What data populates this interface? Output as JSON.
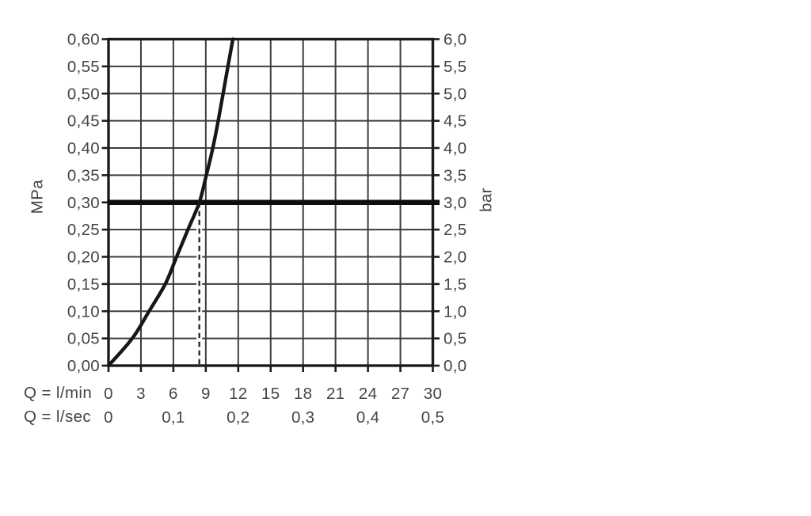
{
  "page": {
    "background_color": "#ffffff"
  },
  "chart_data": {
    "type": "line",
    "y_axis_left": {
      "unit": "MPa",
      "range": [
        0,
        0.6
      ],
      "tick_step": 0.05,
      "tick_labels": [
        "0,60",
        "0,55",
        "0,50",
        "0,45",
        "0,40",
        "0,35",
        "0,30",
        "0,25",
        "0,20",
        "0,15",
        "0,10",
        "0,05",
        "0,00"
      ]
    },
    "y_axis_right": {
      "unit": "bar",
      "range": [
        0,
        6.0
      ],
      "tick_step": 0.5,
      "tick_labels": [
        "6,0",
        "5,5",
        "5,0",
        "4,5",
        "4,0",
        "3,5",
        "3,0",
        "2,5",
        "2,0",
        "1,5",
        "1,0",
        "0,5",
        "0,0"
      ]
    },
    "x_axis_primary": {
      "label": "Q = l/min",
      "range": [
        0,
        30
      ],
      "tick_step": 3,
      "tick_labels": [
        "0",
        "3",
        "6",
        "9",
        "12",
        "15",
        "18",
        "21",
        "24",
        "27",
        "30"
      ]
    },
    "x_axis_secondary": {
      "label": "Q = l/sec",
      "tick_labels": [
        "0",
        "0,1",
        "0,2",
        "0,3",
        "0,4",
        "0,5"
      ],
      "tick_positions_lmin": [
        0,
        6,
        12,
        18,
        24,
        30
      ]
    },
    "grid": {
      "show": true,
      "x_step_lmin": 3,
      "y_step_mpa": 0.05
    },
    "series": [
      {
        "name": "flow-curve",
        "points_q_lmin_p_mpa": [
          [
            0,
            0.0
          ],
          [
            2.2,
            0.05
          ],
          [
            3.75,
            0.1
          ],
          [
            5.25,
            0.15
          ],
          [
            6.3,
            0.2
          ],
          [
            7.35,
            0.25
          ],
          [
            8.4,
            0.3
          ],
          [
            9.05,
            0.35
          ],
          [
            9.65,
            0.4
          ],
          [
            10.15,
            0.45
          ],
          [
            10.6,
            0.5
          ],
          [
            11.05,
            0.55
          ],
          [
            11.5,
            0.6
          ]
        ]
      }
    ],
    "reference_line": {
      "orientation": "horizontal",
      "pressure_mpa": 0.3,
      "pressure_bar": 3.0,
      "style": "thick-solid"
    },
    "guide_line": {
      "orientation": "vertical",
      "flow_q_lmin": 8.4,
      "style": "dashed",
      "extends_from_mpa": 0.0,
      "extends_to_mpa": 0.3
    },
    "operating_point": {
      "q_lmin": 8.4,
      "pressure_mpa": 0.3,
      "pressure_bar": 3.0
    }
  },
  "colors": {
    "background": "#ffffff",
    "plot_border": "#1c1c1c",
    "grid_line": "#3d3d3d",
    "tick_mark": "#1c1c1c",
    "curve": "#171717",
    "reference_line": "#0e0e0e",
    "guide_line": "#2a2a2a",
    "label_text": "#454545"
  }
}
